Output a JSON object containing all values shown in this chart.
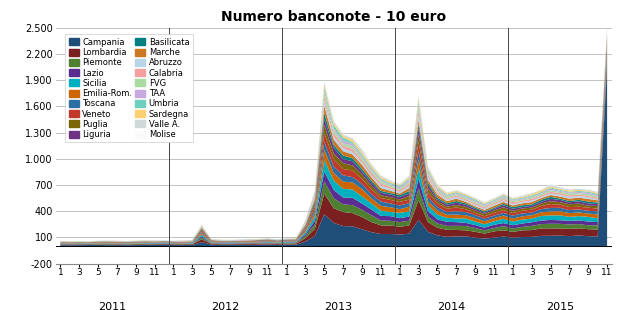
{
  "title": "Numero banconote - 10 euro",
  "ylim": [
    -200,
    2500
  ],
  "yticks": [
    -200,
    100,
    400,
    700,
    1000,
    1300,
    1600,
    1900,
    2200,
    2500
  ],
  "ytick_labels": [
    "-200",
    "100",
    "400",
    "700",
    "1.000",
    "1.300",
    "1.600",
    "1.900",
    "2.200",
    "2.500"
  ],
  "regions_col1": [
    "Campania",
    "Piemonte",
    "Sicilia",
    "Toscana",
    "Puglia",
    "Basilicata",
    "Abruzzo",
    "FVG",
    "Umbria",
    "Valle A."
  ],
  "regions_col2": [
    "Lombardia",
    "Lazio",
    "Emilia-Rom.",
    "Veneto",
    "Liguria",
    "Marche",
    "Calabria",
    "TAA",
    "Sardegna",
    "Molise"
  ],
  "regions": [
    "Campania",
    "Lombardia",
    "Piemonte",
    "Lazio",
    "Sicilia",
    "Emilia-Rom.",
    "Toscana",
    "Veneto",
    "Puglia",
    "Liguria",
    "Basilicata",
    "Marche",
    "Abruzzo",
    "Calabria",
    "FVG",
    "TAA",
    "Umbria",
    "Sardegna",
    "Valle A.",
    "Molise"
  ],
  "colors": [
    "#1F4E79",
    "#7B2020",
    "#4F7F30",
    "#5C2D91",
    "#00B0C0",
    "#CC6600",
    "#2E6FA3",
    "#C0392B",
    "#7D6608",
    "#6C3483",
    "#008080",
    "#CC7722",
    "#B8D4E8",
    "#F4A0A0",
    "#AADBA0",
    "#C8A8E0",
    "#70D0C0",
    "#FAD070",
    "#D0D8D8",
    "#FAFAFA"
  ],
  "background_color": "#FFFFFF",
  "grid_color": "#AAAAAA",
  "totals": [
    60,
    58,
    55,
    58,
    62,
    65,
    62,
    58,
    62,
    65,
    68,
    65,
    62,
    65,
    70,
    250,
    82,
    76,
    72,
    75,
    80,
    85,
    88,
    80,
    88,
    92,
    300,
    650,
    1900,
    1450,
    1280,
    1250,
    1120,
    950,
    820,
    760,
    720,
    820,
    1720,
    920,
    720,
    620,
    650,
    610,
    560,
    510,
    555,
    610,
    560,
    585,
    610,
    655,
    710,
    685,
    655,
    665,
    655,
    625,
    2500
  ],
  "region_props": [
    0.19,
    0.13,
    0.08,
    0.07,
    0.08,
    0.07,
    0.06,
    0.06,
    0.05,
    0.04,
    0.03,
    0.04,
    0.03,
    0.03,
    0.03,
    0.02,
    0.02,
    0.02,
    0.02,
    0.01
  ],
  "months_per_year": [
    12,
    12,
    12,
    12,
    11
  ],
  "years": [
    2011,
    2012,
    2013,
    2014,
    2015
  ]
}
